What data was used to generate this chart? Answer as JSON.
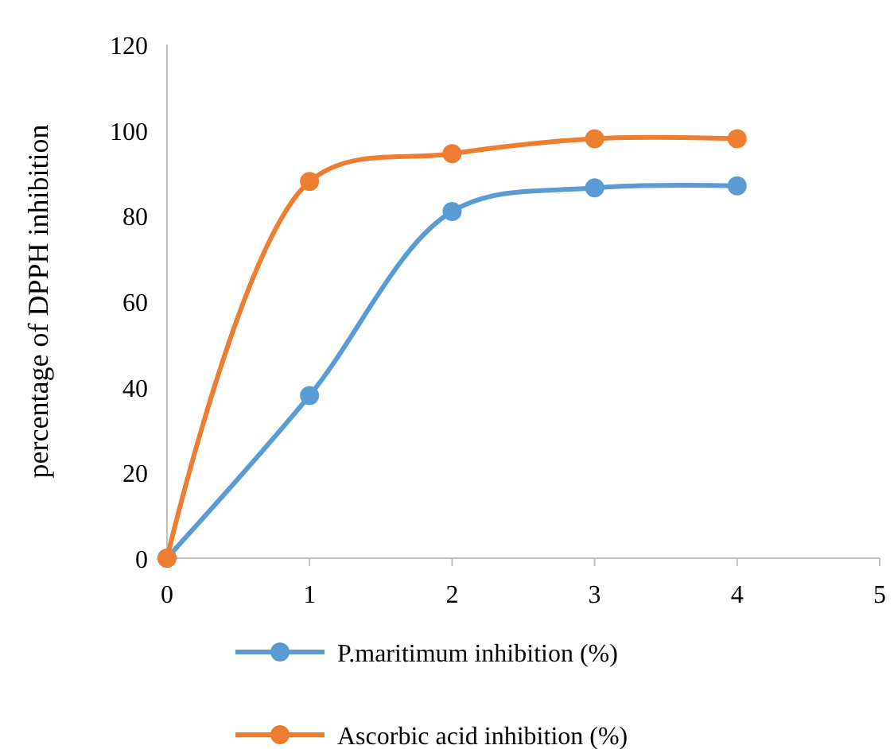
{
  "chart_data": {
    "type": "line",
    "ylabel": "percentage of DPPH inhibition",
    "x": [
      0,
      1,
      2,
      3,
      4
    ],
    "xlim": [
      0,
      5
    ],
    "xticks": [
      0,
      1,
      2,
      3,
      4,
      5
    ],
    "ylim": [
      0,
      120
    ],
    "yticks": [
      0,
      20,
      40,
      60,
      80,
      100,
      120
    ],
    "grid": false,
    "legend": "bottom",
    "marker": "circle",
    "line_style": "solid",
    "series": [
      {
        "name": "P.maritimum inhibition (%)",
        "color": "#5b9bd5",
        "values": [
          0,
          38,
          81,
          86.5,
          87
        ]
      },
      {
        "name": "Ascorbic acid inhibition (%)",
        "color": "#ed7d31",
        "values": [
          0,
          88,
          94.5,
          98,
          98
        ]
      }
    ]
  }
}
